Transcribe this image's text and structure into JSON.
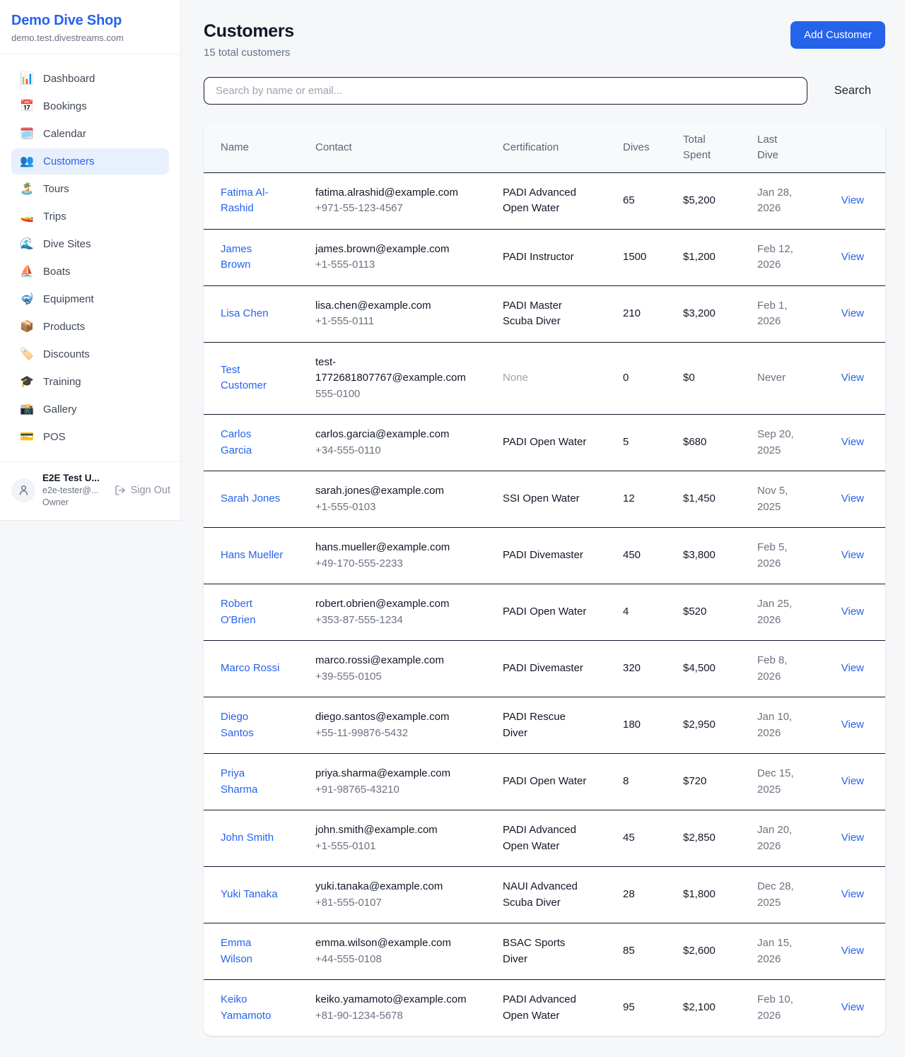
{
  "colors": {
    "accent": "#2563eb",
    "active_nav_bg": "#e8effd",
    "page_bg": "#f6f7f9",
    "row_border": "#10182b",
    "muted_text": "#6b7280",
    "light_muted_text": "#9ca3af"
  },
  "sidebar": {
    "brand": {
      "name": "Demo Dive Shop",
      "domain": "demo.test.divestreams.com"
    },
    "items": [
      {
        "icon": "bar-chart-icon",
        "glyph": "📊",
        "label": "Dashboard",
        "active": false
      },
      {
        "icon": "calendar-icon",
        "glyph": "📅",
        "label": "Bookings",
        "active": false
      },
      {
        "icon": "spiral-calendar-icon",
        "glyph": "🗓️",
        "label": "Calendar",
        "active": false
      },
      {
        "icon": "people-icon",
        "glyph": "👥",
        "label": "Customers",
        "active": true
      },
      {
        "icon": "desert-island-icon",
        "glyph": "🏝️",
        "label": "Tours",
        "active": false
      },
      {
        "icon": "speedboat-icon",
        "glyph": "🚤",
        "label": "Trips",
        "active": false
      },
      {
        "icon": "wave-icon",
        "glyph": "🌊",
        "label": "Dive Sites",
        "active": false
      },
      {
        "icon": "sailboat-icon",
        "glyph": "⛵",
        "label": "Boats",
        "active": false
      },
      {
        "icon": "diving-mask-icon",
        "glyph": "🤿",
        "label": "Equipment",
        "active": false
      },
      {
        "icon": "package-icon",
        "glyph": "📦",
        "label": "Products",
        "active": false
      },
      {
        "icon": "label-tag-icon",
        "glyph": "🏷️",
        "label": "Discounts",
        "active": false
      },
      {
        "icon": "graduation-cap-icon",
        "glyph": "🎓",
        "label": "Training",
        "active": false
      },
      {
        "icon": "camera-flash-icon",
        "glyph": "📸",
        "label": "Gallery",
        "active": false
      },
      {
        "icon": "credit-card-icon",
        "glyph": "💳",
        "label": "POS",
        "active": false
      }
    ],
    "user": {
      "name": "E2E Test U...",
      "email": "e2e-tester@...",
      "role": "Owner",
      "signout_label": "Sign Out"
    }
  },
  "header": {
    "title": "Customers",
    "subtitle": "15 total customers",
    "add_button_label": "Add Customer"
  },
  "search": {
    "placeholder": "Search by name or email...",
    "button_label": "Search"
  },
  "table": {
    "columns": [
      "Name",
      "Contact",
      "Certification",
      "Dives",
      "Total Spent",
      "Last Dive",
      ""
    ],
    "view_label": "View",
    "rows": [
      {
        "name": "Fatima Al-Rashid",
        "email": "fatima.alrashid@example.com",
        "phone": "+971-55-123-4567",
        "certification": "PADI Advanced Open Water",
        "dives": "65",
        "total_spent": "$5,200",
        "last_dive": "Jan 28, 2026"
      },
      {
        "name": "James Brown",
        "email": "james.brown@example.com",
        "phone": "+1-555-0113",
        "certification": "PADI Instructor",
        "dives": "1500",
        "total_spent": "$1,200",
        "last_dive": "Feb 12, 2026"
      },
      {
        "name": "Lisa Chen",
        "email": "lisa.chen@example.com",
        "phone": "+1-555-0111",
        "certification": "PADI Master Scuba Diver",
        "dives": "210",
        "total_spent": "$3,200",
        "last_dive": "Feb 1, 2026"
      },
      {
        "name": "Test Customer",
        "email": "test-1772681807767@example.com",
        "phone": "555-0100",
        "certification": "None",
        "dives": "0",
        "total_spent": "$0",
        "last_dive": "Never"
      },
      {
        "name": "Carlos Garcia",
        "email": "carlos.garcia@example.com",
        "phone": "+34-555-0110",
        "certification": "PADI Open Water",
        "dives": "5",
        "total_spent": "$680",
        "last_dive": "Sep 20, 2025"
      },
      {
        "name": "Sarah Jones",
        "email": "sarah.jones@example.com",
        "phone": "+1-555-0103",
        "certification": "SSI Open Water",
        "dives": "12",
        "total_spent": "$1,450",
        "last_dive": "Nov 5, 2025"
      },
      {
        "name": "Hans Mueller",
        "email": "hans.mueller@example.com",
        "phone": "+49-170-555-2233",
        "certification": "PADI Divemaster",
        "dives": "450",
        "total_spent": "$3,800",
        "last_dive": "Feb 5, 2026"
      },
      {
        "name": "Robert O'Brien",
        "email": "robert.obrien@example.com",
        "phone": "+353-87-555-1234",
        "certification": "PADI Open Water",
        "dives": "4",
        "total_spent": "$520",
        "last_dive": "Jan 25, 2026"
      },
      {
        "name": "Marco Rossi",
        "email": "marco.rossi@example.com",
        "phone": "+39-555-0105",
        "certification": "PADI Divemaster",
        "dives": "320",
        "total_spent": "$4,500",
        "last_dive": "Feb 8, 2026"
      },
      {
        "name": "Diego Santos",
        "email": "diego.santos@example.com",
        "phone": "+55-11-99876-5432",
        "certification": "PADI Rescue Diver",
        "dives": "180",
        "total_spent": "$2,950",
        "last_dive": "Jan 10, 2026"
      },
      {
        "name": "Priya Sharma",
        "email": "priya.sharma@example.com",
        "phone": "+91-98765-43210",
        "certification": "PADI Open Water",
        "dives": "8",
        "total_spent": "$720",
        "last_dive": "Dec 15, 2025"
      },
      {
        "name": "John Smith",
        "email": "john.smith@example.com",
        "phone": "+1-555-0101",
        "certification": "PADI Advanced Open Water",
        "dives": "45",
        "total_spent": "$2,850",
        "last_dive": "Jan 20, 2026"
      },
      {
        "name": "Yuki Tanaka",
        "email": "yuki.tanaka@example.com",
        "phone": "+81-555-0107",
        "certification": "NAUI Advanced Scuba Diver",
        "dives": "28",
        "total_spent": "$1,800",
        "last_dive": "Dec 28, 2025"
      },
      {
        "name": "Emma Wilson",
        "email": "emma.wilson@example.com",
        "phone": "+44-555-0108",
        "certification": "BSAC Sports Diver",
        "dives": "85",
        "total_spent": "$2,600",
        "last_dive": "Jan 15, 2026"
      },
      {
        "name": "Keiko Yamamoto",
        "email": "keiko.yamamoto@example.com",
        "phone": "+81-90-1234-5678",
        "certification": "PADI Advanced Open Water",
        "dives": "95",
        "total_spent": "$2,100",
        "last_dive": "Feb 10, 2026"
      }
    ]
  }
}
